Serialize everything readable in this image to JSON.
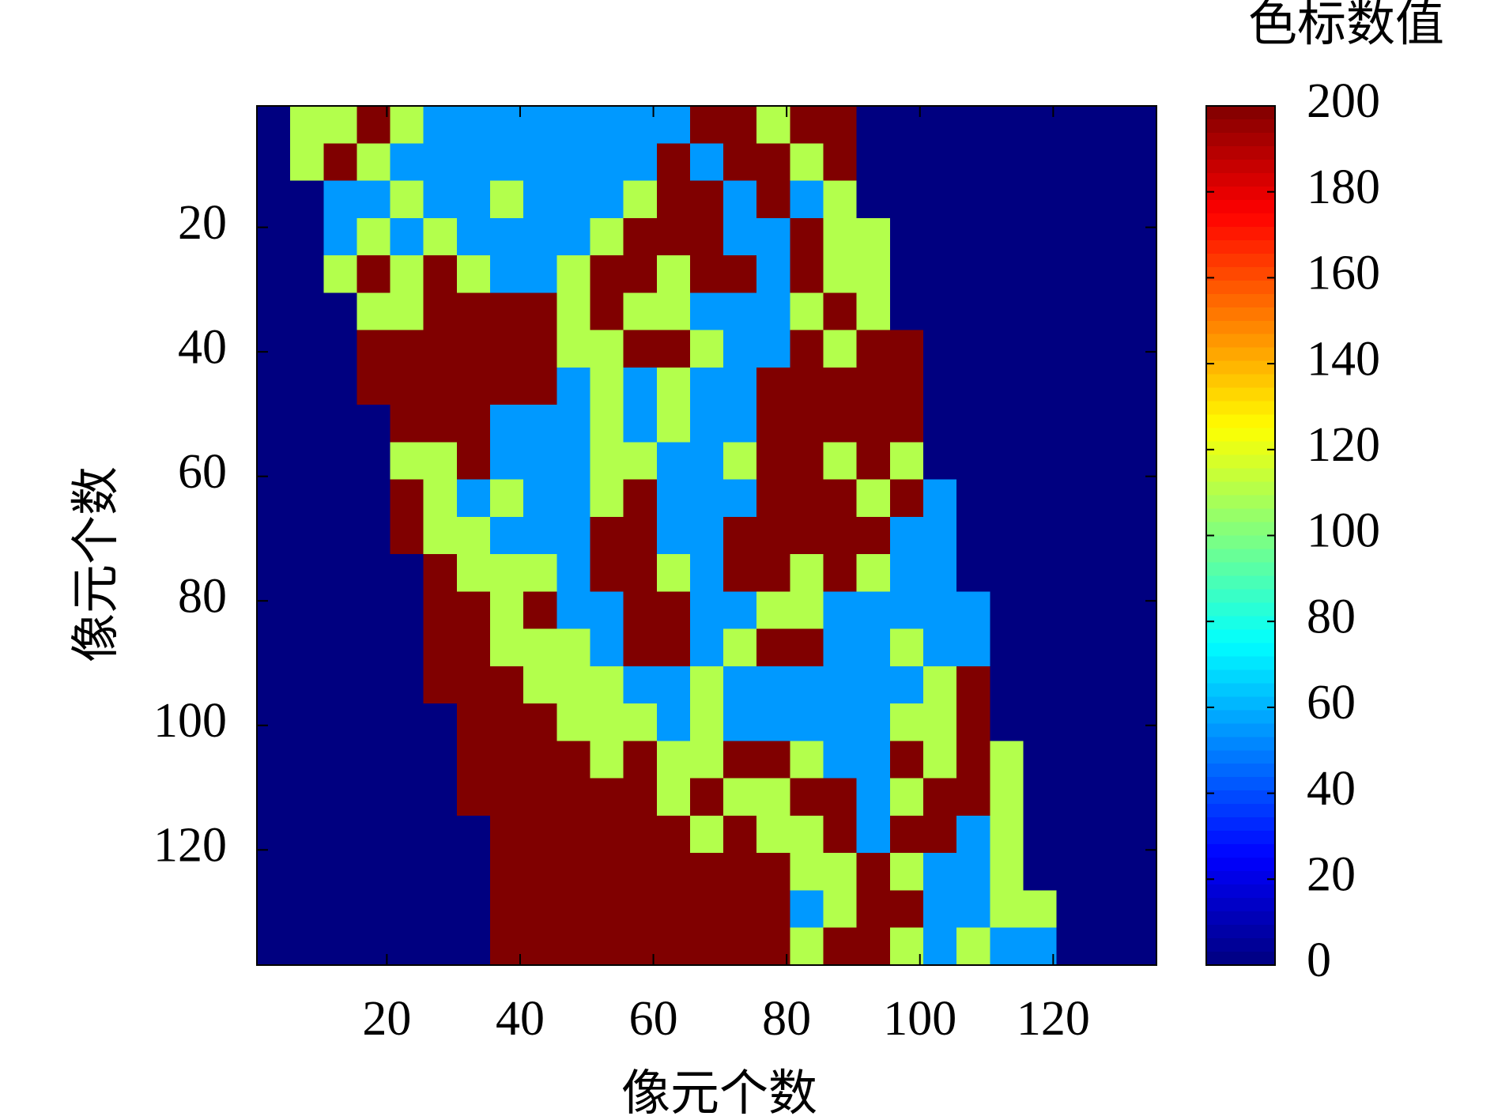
{
  "chart_data": {
    "type": "heatmap",
    "xlabel": "像元个数",
    "ylabel": "像元个数",
    "colormap": "jet",
    "yaxis_inverted": true,
    "xlim": [
      0.5,
      135.5
    ],
    "ylim": [
      0.5,
      138.5
    ],
    "xticks": [
      20,
      40,
      60,
      80,
      100,
      120
    ],
    "yticks": [
      20,
      40,
      60,
      80,
      100,
      120
    ],
    "colorbar": {
      "title": "色标数值",
      "lim": [
        0,
        200
      ],
      "ticks": [
        0,
        20,
        40,
        60,
        80,
        100,
        120,
        140,
        160,
        180,
        200
      ]
    },
    "x": [
      3,
      8,
      13,
      18,
      23,
      28,
      33,
      38,
      43,
      48,
      53,
      58,
      63,
      68,
      73,
      78,
      83,
      88,
      93,
      98,
      103,
      108,
      113,
      118,
      123,
      128,
      133
    ],
    "y": [
      3.5,
      9.5,
      15.5,
      21.5,
      27.5,
      33.5,
      39.5,
      45.5,
      51.5,
      57.5,
      63.5,
      69.5,
      75.5,
      81.5,
      87.5,
      93.5,
      99.5,
      105.5,
      111.5,
      117.5,
      123.5,
      129.5,
      135.5
    ],
    "z": [
      [
        0,
        110,
        110,
        200,
        110,
        55,
        55,
        55,
        55,
        55,
        55,
        55,
        55,
        200,
        200,
        110,
        200,
        200,
        0,
        0,
        0,
        0,
        0,
        0,
        0,
        0,
        0
      ],
      [
        0,
        110,
        200,
        110,
        55,
        55,
        55,
        55,
        55,
        55,
        55,
        55,
        200,
        55,
        200,
        200,
        110,
        200,
        0,
        0,
        0,
        0,
        0,
        0,
        0,
        0,
        0
      ],
      [
        0,
        0,
        55,
        55,
        110,
        55,
        55,
        110,
        55,
        55,
        55,
        110,
        200,
        200,
        55,
        200,
        55,
        110,
        0,
        0,
        0,
        0,
        0,
        0,
        0,
        0,
        0
      ],
      [
        0,
        0,
        55,
        110,
        55,
        110,
        55,
        55,
        55,
        55,
        110,
        200,
        200,
        200,
        55,
        55,
        200,
        110,
        110,
        0,
        0,
        0,
        0,
        0,
        0,
        0,
        0
      ],
      [
        0,
        0,
        110,
        200,
        110,
        200,
        110,
        55,
        55,
        110,
        200,
        200,
        110,
        200,
        200,
        55,
        200,
        110,
        110,
        0,
        0,
        0,
        0,
        0,
        0,
        0,
        0
      ],
      [
        0,
        0,
        0,
        110,
        110,
        200,
        200,
        200,
        200,
        110,
        200,
        110,
        110,
        55,
        55,
        55,
        110,
        200,
        110,
        0,
        0,
        0,
        0,
        0,
        0,
        0,
        0
      ],
      [
        0,
        0,
        0,
        200,
        200,
        200,
        200,
        200,
        200,
        110,
        110,
        200,
        200,
        110,
        55,
        55,
        200,
        110,
        200,
        200,
        0,
        0,
        0,
        0,
        0,
        0,
        0
      ],
      [
        0,
        0,
        0,
        200,
        200,
        200,
        200,
        200,
        200,
        55,
        110,
        55,
        110,
        55,
        55,
        200,
        200,
        200,
        200,
        200,
        0,
        0,
        0,
        0,
        0,
        0,
        0
      ],
      [
        0,
        0,
        0,
        0,
        200,
        200,
        200,
        55,
        55,
        55,
        110,
        55,
        110,
        55,
        55,
        200,
        200,
        200,
        200,
        200,
        0,
        0,
        0,
        0,
        0,
        0,
        0
      ],
      [
        0,
        0,
        0,
        0,
        110,
        110,
        200,
        55,
        55,
        55,
        110,
        110,
        55,
        55,
        110,
        200,
        200,
        110,
        200,
        110,
        0,
        0,
        0,
        0,
        0,
        0,
        0
      ],
      [
        0,
        0,
        0,
        0,
        200,
        110,
        55,
        110,
        55,
        55,
        110,
        200,
        55,
        55,
        55,
        200,
        200,
        200,
        110,
        200,
        55,
        0,
        0,
        0,
        0,
        0,
        0
      ],
      [
        0,
        0,
        0,
        0,
        200,
        110,
        110,
        55,
        55,
        55,
        200,
        200,
        55,
        55,
        200,
        200,
        200,
        200,
        200,
        55,
        55,
        0,
        0,
        0,
        0,
        0,
        0
      ],
      [
        0,
        0,
        0,
        0,
        0,
        200,
        110,
        110,
        110,
        55,
        200,
        200,
        110,
        55,
        200,
        200,
        110,
        200,
        110,
        55,
        55,
        0,
        0,
        0,
        0,
        0,
        0
      ],
      [
        0,
        0,
        0,
        0,
        0,
        200,
        200,
        110,
        200,
        55,
        55,
        200,
        200,
        55,
        55,
        110,
        110,
        55,
        55,
        55,
        55,
        55,
        0,
        0,
        0,
        0,
        0
      ],
      [
        0,
        0,
        0,
        0,
        0,
        200,
        200,
        110,
        110,
        110,
        55,
        200,
        200,
        55,
        110,
        200,
        200,
        55,
        55,
        110,
        55,
        55,
        0,
        0,
        0,
        0,
        0
      ],
      [
        0,
        0,
        0,
        0,
        0,
        200,
        200,
        200,
        110,
        110,
        110,
        55,
        55,
        110,
        55,
        55,
        55,
        55,
        55,
        55,
        110,
        200,
        0,
        0,
        0,
        0,
        0
      ],
      [
        0,
        0,
        0,
        0,
        0,
        0,
        200,
        200,
        200,
        110,
        110,
        110,
        55,
        110,
        55,
        55,
        55,
        55,
        55,
        110,
        110,
        200,
        0,
        0,
        0,
        0,
        0
      ],
      [
        0,
        0,
        0,
        0,
        0,
        0,
        200,
        200,
        200,
        200,
        110,
        200,
        110,
        110,
        200,
        200,
        110,
        55,
        55,
        200,
        110,
        200,
        110,
        0,
        0,
        0,
        0
      ],
      [
        0,
        0,
        0,
        0,
        0,
        0,
        200,
        200,
        200,
        200,
        200,
        200,
        110,
        200,
        110,
        110,
        200,
        200,
        55,
        110,
        200,
        200,
        110,
        0,
        0,
        0,
        0
      ],
      [
        0,
        0,
        0,
        0,
        0,
        0,
        0,
        200,
        200,
        200,
        200,
        200,
        200,
        110,
        200,
        110,
        110,
        200,
        55,
        200,
        200,
        55,
        110,
        0,
        0,
        0,
        0
      ],
      [
        0,
        0,
        0,
        0,
        0,
        0,
        0,
        200,
        200,
        200,
        200,
        200,
        200,
        200,
        200,
        200,
        110,
        110,
        200,
        110,
        55,
        55,
        110,
        0,
        0,
        0,
        0
      ],
      [
        0,
        0,
        0,
        0,
        0,
        0,
        0,
        200,
        200,
        200,
        200,
        200,
        200,
        200,
        200,
        200,
        55,
        110,
        200,
        200,
        55,
        55,
        110,
        110,
        0,
        0,
        0
      ],
      [
        0,
        0,
        0,
        0,
        0,
        0,
        0,
        200,
        200,
        200,
        200,
        200,
        200,
        200,
        200,
        200,
        110,
        200,
        200,
        110,
        55,
        110,
        55,
        55,
        0,
        0,
        0
      ]
    ]
  }
}
